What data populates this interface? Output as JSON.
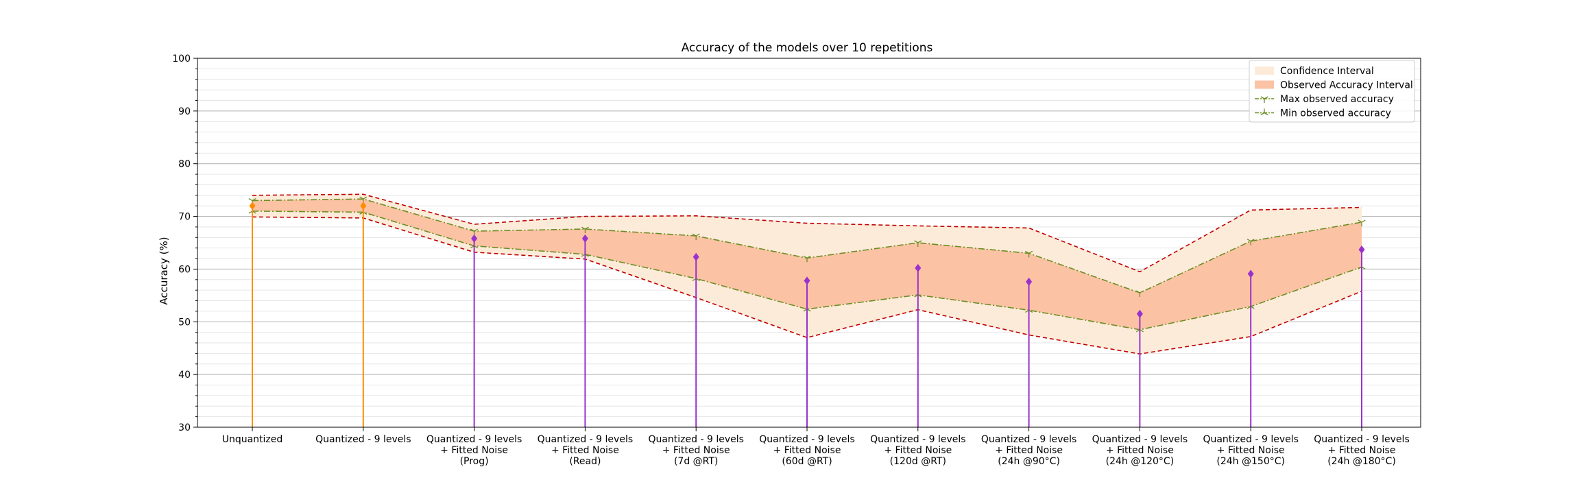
{
  "chart_data": {
    "type": "line",
    "title": "Accuracy of the models over 10 repetitions",
    "xlabel": "",
    "ylabel": "Accuracy (%)",
    "ylim": [
      30,
      100
    ],
    "yticks": [
      30,
      40,
      50,
      60,
      70,
      80,
      90,
      100
    ],
    "grid": "horizontal major and minor",
    "legend_position": "top-right",
    "categories": [
      [
        "Unquantized"
      ],
      [
        "Quantized - 9 levels"
      ],
      [
        "Quantized - 9 levels",
        "+ Fitted Noise",
        "(Prog)"
      ],
      [
        "Quantized - 9 levels",
        "+ Fitted Noise",
        "(Read)"
      ],
      [
        "Quantized - 9 levels",
        "+ Fitted Noise",
        "(7d @RT)"
      ],
      [
        "Quantized - 9 levels",
        "+ Fitted Noise",
        "(60d @RT)"
      ],
      [
        "Quantized - 9 levels",
        "+ Fitted Noise",
        "(120d @RT)"
      ],
      [
        "Quantized - 9 levels",
        "+ Fitted Noise",
        "(24h @90°C)"
      ],
      [
        "Quantized - 9 levels",
        "+ Fitted Noise",
        "(24h @120°C)"
      ],
      [
        "Quantized - 9 levels",
        "+ Fitted Noise",
        "(24h @150°C)"
      ],
      [
        "Quantized - 9 levels",
        "+ Fitted Noise",
        "(24h @180°C)"
      ]
    ],
    "series": [
      {
        "name": "Confidence Interval",
        "kind": "band",
        "color": "#fdebd9",
        "upper": [
          74.0,
          74.2,
          68.5,
          70.0,
          70.1,
          68.7,
          68.2,
          67.8,
          59.5,
          71.2,
          71.7
        ],
        "lower": [
          69.9,
          69.7,
          63.2,
          61.9,
          54.6,
          47.0,
          52.3,
          47.5,
          43.9,
          47.2,
          55.8
        ]
      },
      {
        "name": "Observed Accuracy Interval",
        "kind": "band",
        "color": "#fbc2a4",
        "upper": [
          73.0,
          73.3,
          67.2,
          67.6,
          66.3,
          62.1,
          65.0,
          63.0,
          55.5,
          65.3,
          68.9
        ],
        "lower": [
          71.0,
          70.8,
          64.4,
          62.8,
          58.2,
          52.4,
          55.1,
          52.2,
          48.5,
          52.9,
          60.4
        ]
      },
      {
        "name": "Max observed accuracy",
        "kind": "line",
        "color": "#6b8e23",
        "values": [
          73.0,
          73.3,
          67.2,
          67.6,
          66.3,
          62.1,
          65.0,
          63.0,
          55.5,
          65.3,
          68.9
        ]
      },
      {
        "name": "Min observed accuracy",
        "kind": "line",
        "color": "#6b8e23",
        "values": [
          71.0,
          70.8,
          64.4,
          62.8,
          58.2,
          52.4,
          55.1,
          52.2,
          48.5,
          52.9,
          60.4
        ]
      },
      {
        "kind": "stem",
        "values": [
          72.0,
          72.0,
          65.8,
          65.8,
          62.3,
          57.8,
          60.2,
          57.6,
          51.5,
          59.1,
          63.7
        ],
        "colors": [
          "#ff8c00",
          "#ff8c00",
          "#9932cc",
          "#9932cc",
          "#9932cc",
          "#9932cc",
          "#9932cc",
          "#9932cc",
          "#9932cc",
          "#9932cc",
          "#9932cc"
        ]
      }
    ],
    "colors": {
      "ci_edge": "#c00000",
      "grid_major": "#b0b0b0",
      "grid_minor": "#e6e6e6"
    }
  }
}
